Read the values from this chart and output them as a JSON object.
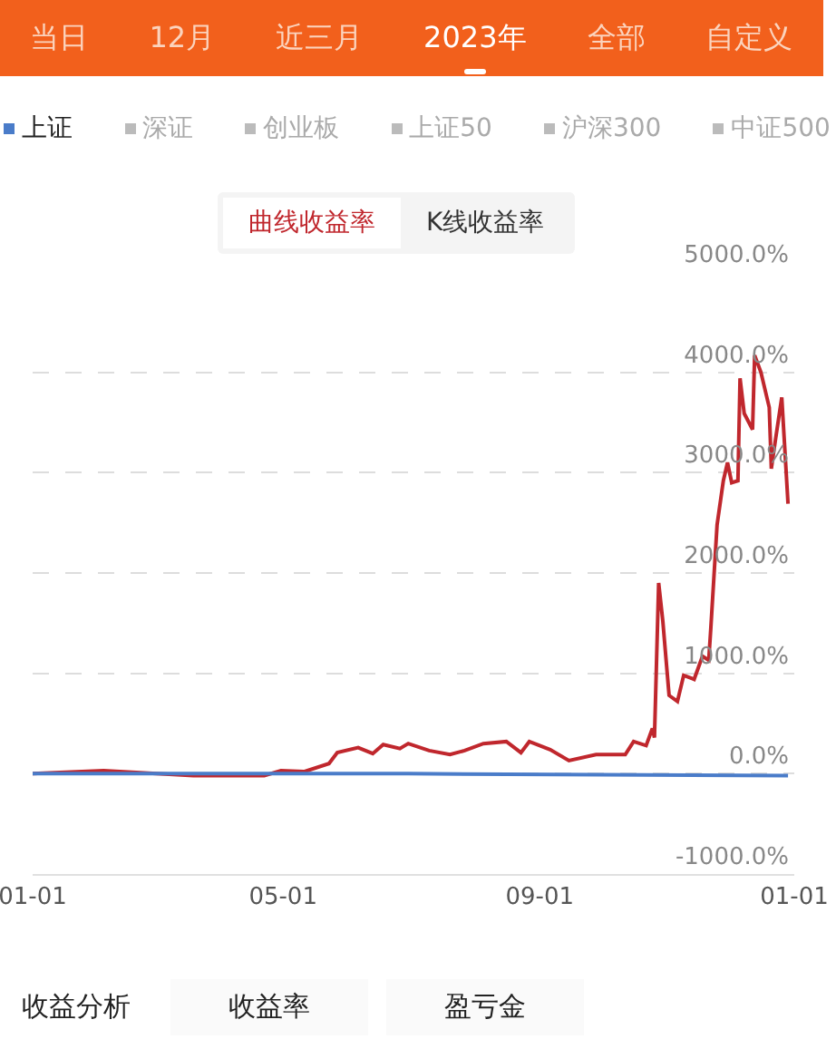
{
  "chart_data": {
    "type": "line",
    "annotations": [
      "当日",
      "12月",
      "近三月",
      "2023年",
      "全部",
      "自定义",
      "曲线收益率",
      "K线收益率",
      "收益分析",
      "收益率",
      "盈亏金"
    ],
    "xlim": [
      "2023-01-01",
      "2024-01-01"
    ],
    "xticks": [
      {
        "value": "2023-01-01",
        "label": "01-01"
      },
      {
        "value": "2023-05-01",
        "label": "05-01"
      },
      {
        "value": "2023-09-01",
        "label": "09-01"
      },
      {
        "value": "2024-01-01",
        "label": "01-01"
      }
    ],
    "ylim": [
      -1000,
      5000
    ],
    "yticks": [
      {
        "value": -1000,
        "label": "-1000.0%"
      },
      {
        "value": 0,
        "label": "0.0%"
      },
      {
        "value": 1000,
        "label": "1000.0%"
      },
      {
        "value": 2000,
        "label": "2000.0%"
      },
      {
        "value": 3000,
        "label": "3000.0%"
      },
      {
        "value": 4000,
        "label": "4000.0%"
      },
      {
        "value": 5000,
        "label": "5000.0%"
      }
    ],
    "grid": "y",
    "legend": "top",
    "line_style": "solid",
    "marker": "none",
    "series": [
      {
        "color": "#c0272d",
        "x": [
          "2023-01-01",
          "2023-02-04",
          "2023-03-19",
          "2023-04-22",
          "2023-04-30",
          "2023-05-11",
          "2023-05-23",
          "2023-05-27",
          "2023-06-06",
          "2023-06-13",
          "2023-06-18",
          "2023-06-26",
          "2023-06-30",
          "2023-07-10",
          "2023-07-20",
          "2023-07-27",
          "2023-08-05",
          "2023-08-16",
          "2023-08-23",
          "2023-08-27",
          "2023-09-06",
          "2023-09-15",
          "2023-09-28",
          "2023-10-12",
          "2023-10-16",
          "2023-10-22",
          "2023-10-25",
          "2023-10-26",
          "2023-10-28",
          "2023-10-30",
          "2023-11-02",
          "2023-11-06",
          "2023-11-09",
          "2023-11-14",
          "2023-11-18",
          "2023-11-21",
          "2023-11-22",
          "2023-11-25",
          "2023-11-28",
          "2023-11-30",
          "2023-12-02",
          "2023-12-05",
          "2023-12-06",
          "2023-12-08",
          "2023-12-12",
          "2023-12-13",
          "2023-12-16",
          "2023-12-20",
          "2023-12-21",
          "2023-12-23",
          "2023-12-26",
          "2023-12-29"
        ],
        "values": [
          0,
          30,
          -20,
          -20,
          30,
          20,
          100,
          210,
          260,
          200,
          290,
          250,
          300,
          230,
          190,
          230,
          300,
          320,
          210,
          320,
          240,
          130,
          190,
          190,
          320,
          280,
          450,
          360,
          1900,
          1520,
          780,
          720,
          980,
          940,
          1170,
          1130,
          1450,
          2480,
          2920,
          3100,
          2900,
          2920,
          3940,
          3590,
          3430,
          4170,
          4000,
          3650,
          3040,
          3330,
          3750,
          2690
        ]
      },
      {
        "name": "上证",
        "color": "#4a7cc9",
        "x": [
          "2023-01-01",
          "2023-06-30",
          "2023-12-29"
        ],
        "values": [
          0,
          0,
          -20
        ]
      },
      {
        "name": "深证",
        "color": "#bbbbbb"
      },
      {
        "name": "创业板",
        "color": "#bbbbbb"
      },
      {
        "name": "上证50",
        "color": "#bbbbbb"
      },
      {
        "name": "沪深300",
        "color": "#bbbbbb"
      },
      {
        "name": "中证500",
        "color": "#bbbbbb"
      }
    ]
  }
}
